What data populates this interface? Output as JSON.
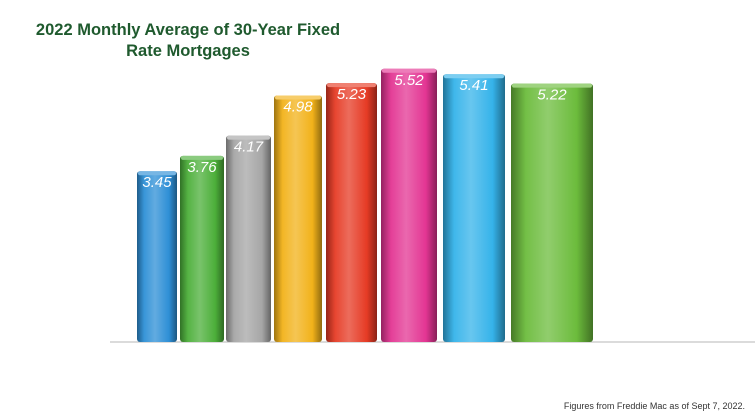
{
  "chart_data": {
    "type": "bar",
    "title": "2022 Monthly Average of 30-Year Fixed Rate Mortgages",
    "values": [
      3.45,
      3.76,
      4.17,
      4.98,
      5.23,
      5.52,
      5.41,
      5.22
    ],
    "value_labels": [
      "3.45",
      "3.76",
      "4.17",
      "4.98",
      "5.23",
      "5.52",
      "5.41",
      "5.22"
    ],
    "bar_colors": [
      "#2e8fd6",
      "#4caf3a",
      "#a6a6a6",
      "#f2b21a",
      "#e63b25",
      "#e33593",
      "#35b3ea",
      "#6cbc3c"
    ],
    "ylim": [
      0,
      6
    ],
    "axes_visible": false,
    "grid": false,
    "legend": "none",
    "style": "3d-bars"
  },
  "source_note": "Figures from Freddie Mac as of Sept 7, 2022."
}
